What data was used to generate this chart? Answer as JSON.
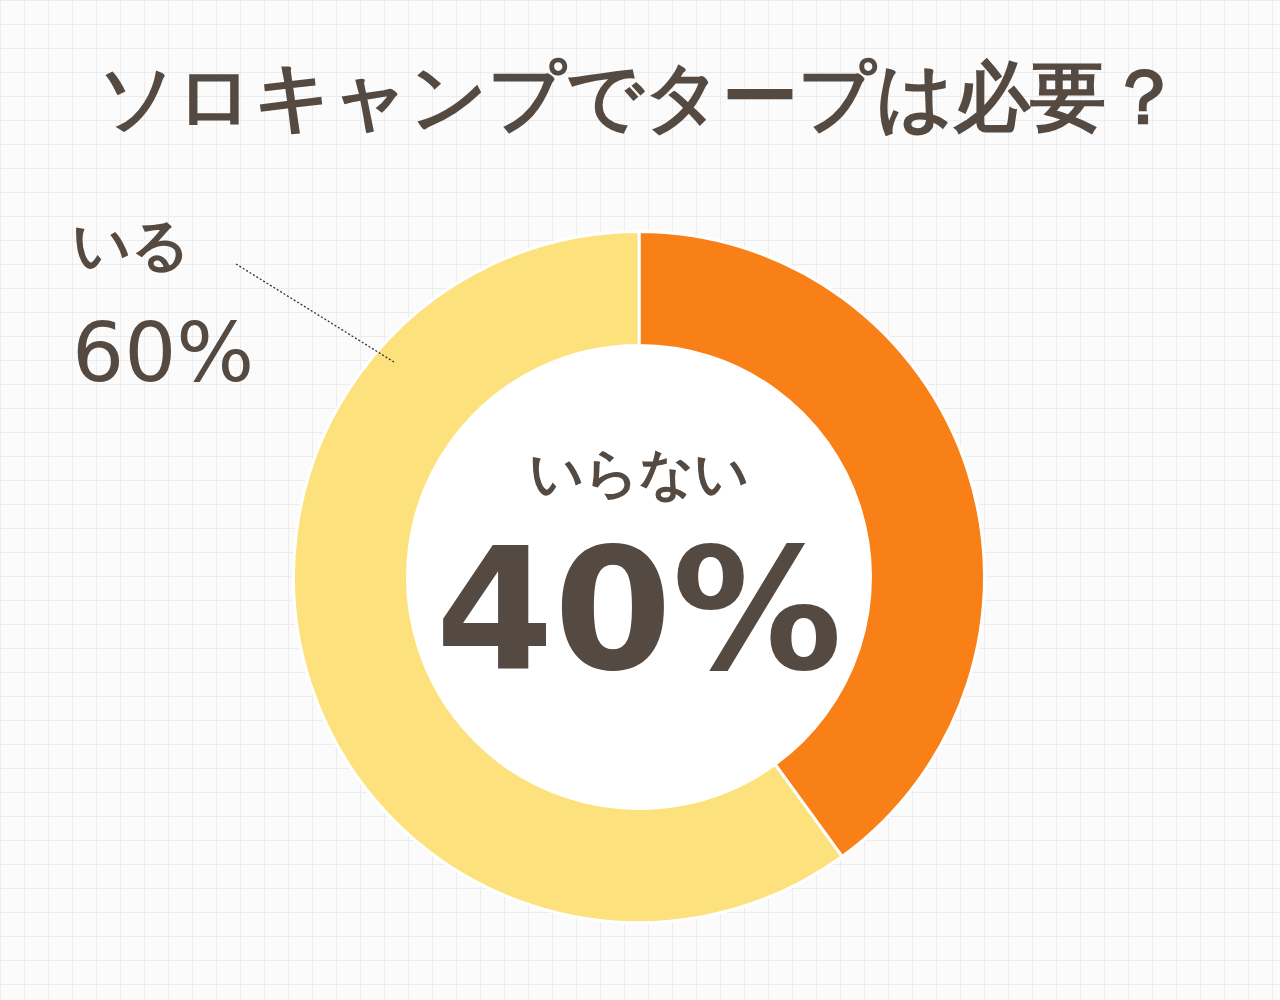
{
  "chart_data": {
    "type": "donut",
    "title": "ソロキャンプでタープは必要？",
    "categories": [
      "いらない",
      "いる"
    ],
    "values": [
      40,
      60
    ],
    "value_labels": [
      "40%",
      "60%"
    ],
    "colors": [
      "#f88017",
      "#fde17d"
    ],
    "legend": false
  }
}
